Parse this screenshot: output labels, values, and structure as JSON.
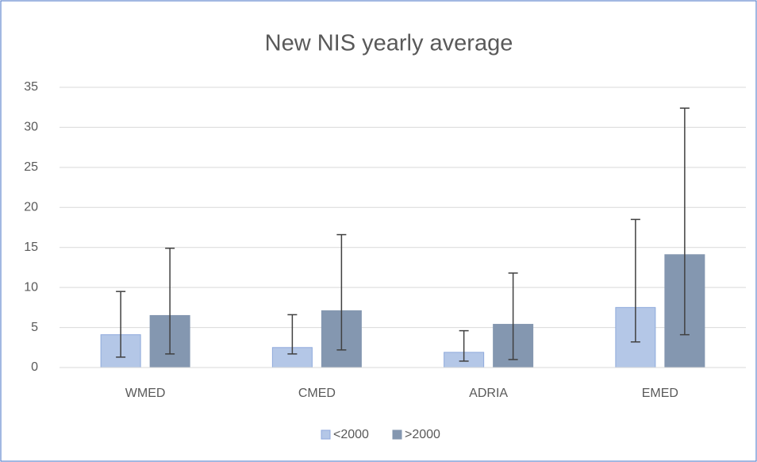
{
  "chart_data": {
    "type": "bar",
    "title": "New NIS yearly average",
    "categories": [
      "WMED",
      "CMED",
      "ADRIA",
      "EMED"
    ],
    "series": [
      {
        "name": "<2000",
        "color": "#b4c7e7",
        "stroke": "#8faadc",
        "values": [
          4.1,
          2.5,
          1.9,
          7.5
        ],
        "err_minus": [
          2.8,
          0.8,
          1.1,
          4.3
        ],
        "err_plus": [
          5.4,
          4.1,
          2.7,
          11.0
        ]
      },
      {
        "name": ">2000",
        "color": "#8497b0",
        "stroke": "#8497b0",
        "values": [
          6.5,
          7.1,
          5.4,
          14.1
        ],
        "err_minus": [
          4.8,
          4.9,
          4.4,
          10.0
        ],
        "err_plus": [
          8.4,
          9.5,
          6.4,
          18.3
        ]
      }
    ],
    "ylim": [
      0,
      35
    ],
    "yticks": [
      0,
      5,
      10,
      15,
      20,
      25,
      30,
      35
    ],
    "grid": true,
    "legend": "bottom"
  }
}
